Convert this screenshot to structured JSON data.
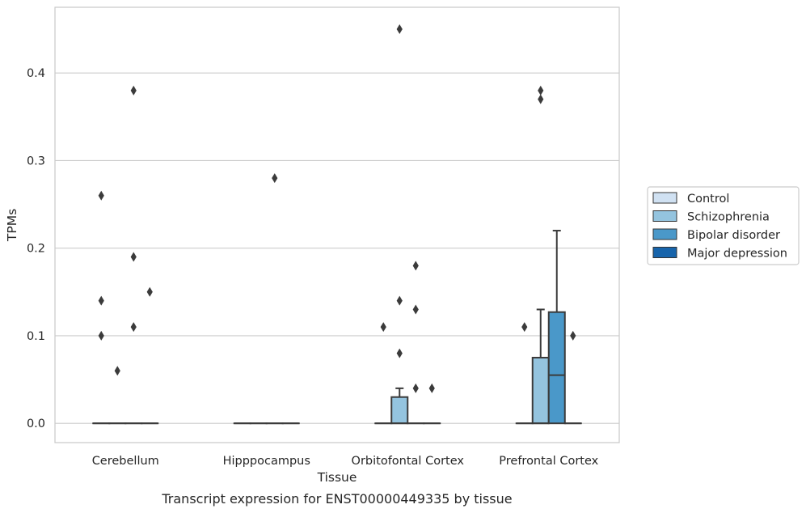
{
  "chart_data": {
    "type": "box",
    "caption": "Transcript expression for ENST00000449335 by tissue",
    "xlabel": "Tissue",
    "ylabel": "TPMs",
    "ylim": [
      -0.022,
      0.475
    ],
    "yticks": [
      0.0,
      0.1,
      0.2,
      0.3,
      0.4
    ],
    "ytick_labels": [
      "0.0",
      "0.1",
      "0.2",
      "0.3",
      "0.4"
    ],
    "grid": "horizontal",
    "legend_position": "right",
    "categories": [
      "Cerebellum",
      "Hipppocampus",
      "Orbitofontal Cortex",
      "Prefrontal Cortex"
    ],
    "series": [
      {
        "name": "Control",
        "color": "#d0e1f2",
        "boxes": [
          {
            "q1": 0,
            "median": 0,
            "q3": 0,
            "whislo": 0,
            "whishi": 0,
            "fliers": [
              0.26,
              0.14,
              0.1
            ]
          },
          {
            "q1": 0,
            "median": 0,
            "q3": 0,
            "whislo": 0,
            "whishi": 0,
            "fliers": []
          },
          {
            "q1": 0,
            "median": 0,
            "q3": 0,
            "whislo": 0,
            "whishi": 0,
            "fliers": [
              0.11
            ]
          },
          {
            "q1": 0,
            "median": 0,
            "q3": 0,
            "whislo": 0,
            "whishi": 0,
            "fliers": [
              0.11
            ]
          }
        ]
      },
      {
        "name": "Schizophrenia",
        "color": "#94c4df",
        "boxes": [
          {
            "q1": 0,
            "median": 0,
            "q3": 0,
            "whislo": 0,
            "whishi": 0,
            "fliers": [
              0.06
            ]
          },
          {
            "q1": 0,
            "median": 0,
            "q3": 0,
            "whislo": 0,
            "whishi": 0,
            "fliers": []
          },
          {
            "q1": 0,
            "median": 0,
            "q3": 0.03,
            "whislo": 0,
            "whishi": 0.04,
            "fliers": [
              0.45,
              0.14,
              0.08
            ]
          },
          {
            "q1": 0,
            "median": 0,
            "q3": 0.075,
            "whislo": 0,
            "whishi": 0.13,
            "fliers": [
              0.38,
              0.37
            ]
          }
        ]
      },
      {
        "name": "Bipolar disorder",
        "color": "#4a98c9",
        "boxes": [
          {
            "q1": 0,
            "median": 0,
            "q3": 0,
            "whislo": 0,
            "whishi": 0,
            "fliers": [
              0.38,
              0.19,
              0.11
            ]
          },
          {
            "q1": 0,
            "median": 0,
            "q3": 0,
            "whislo": 0,
            "whishi": 0,
            "fliers": [
              0.28
            ]
          },
          {
            "q1": 0,
            "median": 0,
            "q3": 0,
            "whislo": 0,
            "whishi": 0,
            "fliers": [
              0.18,
              0.13,
              0.04
            ]
          },
          {
            "q1": 0,
            "median": 0.055,
            "q3": 0.127,
            "whislo": 0,
            "whishi": 0.22,
            "fliers": []
          }
        ]
      },
      {
        "name": "Major depression",
        "color": "#1764ab",
        "boxes": [
          {
            "q1": 0,
            "median": 0,
            "q3": 0,
            "whislo": 0,
            "whishi": 0,
            "fliers": [
              0.15
            ]
          },
          {
            "q1": 0,
            "median": 0,
            "q3": 0,
            "whislo": 0,
            "whishi": 0,
            "fliers": []
          },
          {
            "q1": 0,
            "median": 0,
            "q3": 0,
            "whislo": 0,
            "whishi": 0,
            "fliers": [
              0.04
            ]
          },
          {
            "q1": 0,
            "median": 0,
            "q3": 0,
            "whislo": 0,
            "whishi": 0,
            "fliers": [
              0.1
            ]
          }
        ]
      }
    ]
  }
}
